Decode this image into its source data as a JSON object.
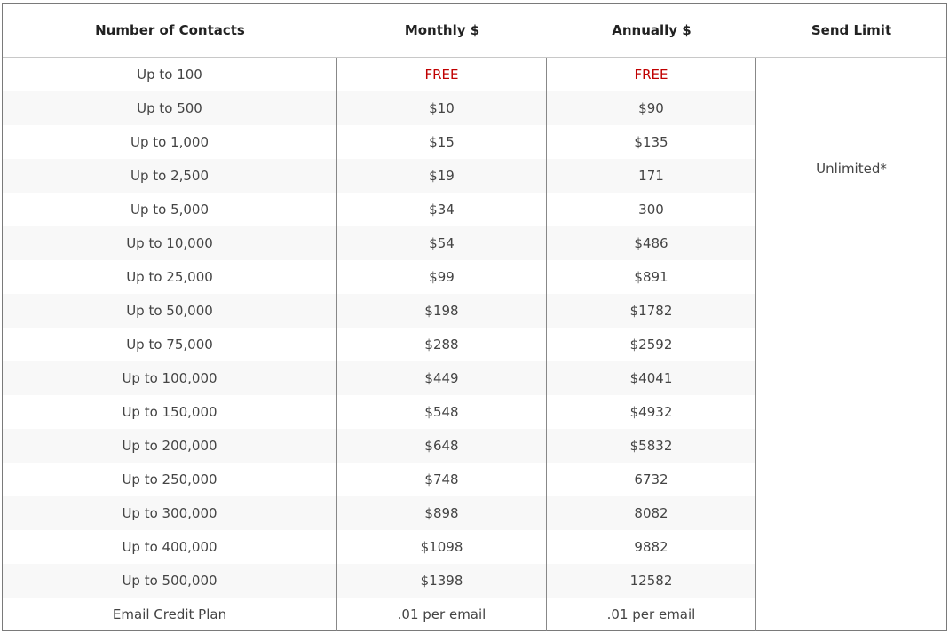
{
  "table": {
    "headers": [
      "Number of Contacts",
      "Monthly $",
      "Annually $",
      "Send Limit"
    ],
    "send_limit": "Unlimited*",
    "rows": [
      {
        "contacts": "Up to 100",
        "monthly": "FREE",
        "annually": "FREE"
      },
      {
        "contacts": "Up to 500",
        "monthly": "$10",
        "annually": "$90"
      },
      {
        "contacts": "Up to 1,000",
        "monthly": "$15",
        "annually": "$135"
      },
      {
        "contacts": "Up to 2,500",
        "monthly": "$19",
        "annually": "171"
      },
      {
        "contacts": "Up to 5,000",
        "monthly": "$34",
        "annually": "300"
      },
      {
        "contacts": "Up to 10,000",
        "monthly": "$54",
        "annually": "$486"
      },
      {
        "contacts": "Up to 25,000",
        "monthly": "$99",
        "annually": "$891"
      },
      {
        "contacts": "Up to 50,000",
        "monthly": "$198",
        "annually": "$1782"
      },
      {
        "contacts": "Up to 75,000",
        "monthly": "$288",
        "annually": "$2592"
      },
      {
        "contacts": "Up to 100,000",
        "monthly": "$449",
        "annually": "$4041"
      },
      {
        "contacts": "Up to 150,000",
        "monthly": "$548",
        "annually": "$4932"
      },
      {
        "contacts": "Up to 200,000",
        "monthly": "$648",
        "annually": "$5832"
      },
      {
        "contacts": "Up to 250,000",
        "monthly": "$748",
        "annually": "6732"
      },
      {
        "contacts": "Up to 300,000",
        "monthly": "$898",
        "annually": "8082"
      },
      {
        "contacts": "Up to 400,000",
        "monthly": "$1098",
        "annually": "9882"
      },
      {
        "contacts": "Up to 500,000",
        "monthly": "$1398",
        "annually": "12582"
      },
      {
        "contacts": "Email Credit Plan",
        "monthly": ".01 per email",
        "annually": ".01 per email"
      }
    ]
  },
  "colors": {
    "free": "#c00000",
    "border": "#888888",
    "stripe": "#f8f8f8"
  }
}
